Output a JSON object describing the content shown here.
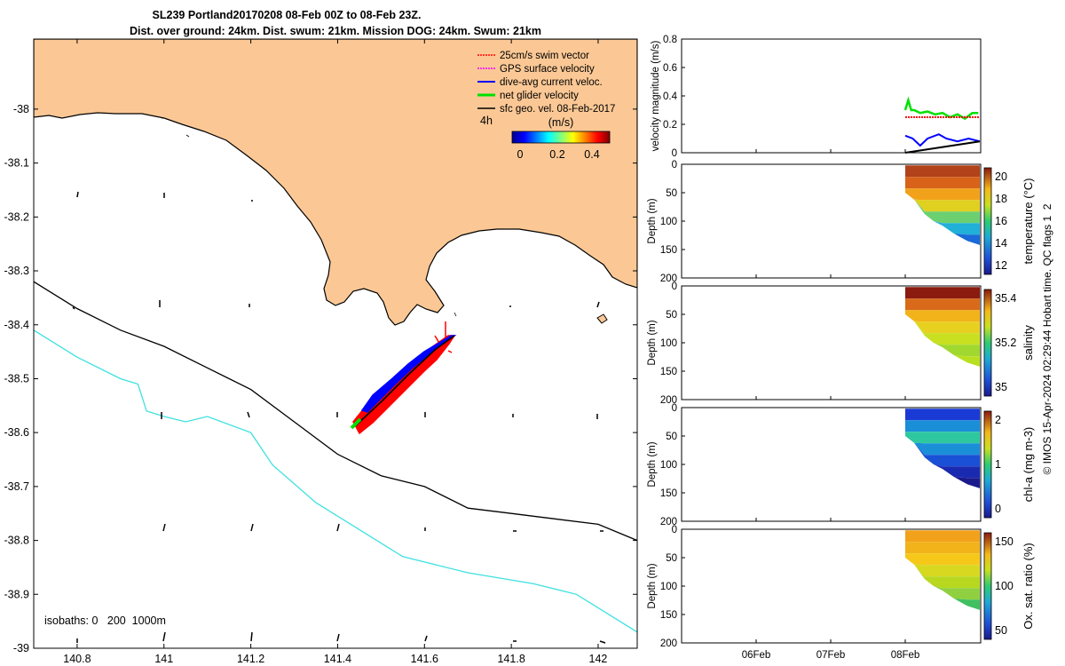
{
  "title_line1": "SL239 Portland20170208 08-Feb 00Z to 08-Feb 23Z.",
  "title_line2": "Dist. over ground: 24km. Dist. swum: 21km. Mission DOG: 24km. Swum: 21km",
  "credit": "© IMOS 15-Apr-2024 02:29:44 Hobart time. QC flags 1  2",
  "chart_data": [
    {
      "type": "map",
      "x_ticks": [
        "140.8",
        "141",
        "141.2",
        "141.4",
        "141.6",
        "141.8",
        "142"
      ],
      "y_ticks": [
        "-38",
        "-38.1",
        "-38.2",
        "-38.3",
        "-38.4",
        "-38.5",
        "-38.6",
        "-38.7",
        "-38.8",
        "-38.9",
        "-39"
      ],
      "xlim": [
        140.7,
        142.09
      ],
      "ylim": [
        -39.0,
        -37.87
      ],
      "legend": {
        "placement": "top-right",
        "entries": [
          {
            "label": "25cm/s swim vector",
            "color": "#ff0000"
          },
          {
            "label": "GPS surface velocity",
            "color": "#ff00ff"
          },
          {
            "label": "dive-avg current veloc.",
            "color": "#0000ff"
          },
          {
            "label": "net glider velocity",
            "color": "#00e000"
          },
          {
            "label": "sfc geo. vel. 08-Feb-2017",
            "color": "#000000"
          }
        ]
      },
      "interval_label": "4h",
      "colorbar": {
        "unit": "(m/s)",
        "ticks": [
          "0",
          "0.2",
          "0.4"
        ]
      },
      "isobath_label": "isobaths: 0   200  1000m",
      "isobath_200": [
        [
          140.7,
          -38.32
        ],
        [
          140.8,
          -38.37
        ],
        [
          140.9,
          -38.41
        ],
        [
          141.0,
          -38.44
        ],
        [
          141.1,
          -38.48
        ],
        [
          141.2,
          -38.52
        ],
        [
          141.3,
          -38.58
        ],
        [
          141.4,
          -38.64
        ],
        [
          141.5,
          -38.68
        ],
        [
          141.6,
          -38.7
        ],
        [
          141.7,
          -38.74
        ],
        [
          141.8,
          -38.75
        ],
        [
          141.9,
          -38.76
        ],
        [
          142.0,
          -38.77
        ],
        [
          142.09,
          -38.8
        ]
      ],
      "isobath_1000": [
        [
          140.7,
          -38.41
        ],
        [
          140.8,
          -38.46
        ],
        [
          140.9,
          -38.5
        ],
        [
          140.94,
          -38.51
        ],
        [
          140.96,
          -38.56
        ],
        [
          141.0,
          -38.57
        ],
        [
          141.05,
          -38.58
        ],
        [
          141.1,
          -38.57
        ],
        [
          141.2,
          -38.6
        ],
        [
          141.25,
          -38.66
        ],
        [
          141.35,
          -38.73
        ],
        [
          141.45,
          -38.78
        ],
        [
          141.55,
          -38.83
        ],
        [
          141.7,
          -38.86
        ],
        [
          141.85,
          -38.88
        ],
        [
          141.95,
          -38.9
        ],
        [
          142.09,
          -38.97
        ]
      ],
      "glider_track_start": [
        141.43,
        -38.61
      ],
      "glider_track_end": [
        141.67,
        -38.45
      ]
    },
    {
      "type": "line",
      "ylabel": "velocity magnitude (m/s)",
      "ylim": [
        0,
        0.8
      ],
      "y_ticks": [
        "0",
        "0.2",
        "0.4",
        "0.6",
        "0.8"
      ],
      "series": [
        {
          "color": "#00e000",
          "values": [
            [
              0.0,
              0.3
            ],
            [
              0.04,
              0.37
            ],
            [
              0.08,
              0.3
            ],
            [
              0.12,
              0.3
            ],
            [
              0.2,
              0.28
            ],
            [
              0.3,
              0.29
            ],
            [
              0.4,
              0.27
            ],
            [
              0.5,
              0.28
            ],
            [
              0.6,
              0.25
            ],
            [
              0.7,
              0.27
            ],
            [
              0.8,
              0.24
            ],
            [
              0.9,
              0.28
            ],
            [
              0.98,
              0.28
            ]
          ]
        },
        {
          "color": "#ff0000",
          "values": [
            [
              0.0,
              0.25
            ],
            [
              1.0,
              0.25
            ]
          ]
        },
        {
          "color": "#0000ff",
          "values": [
            [
              0.0,
              0.12
            ],
            [
              0.1,
              0.1
            ],
            [
              0.2,
              0.05
            ],
            [
              0.3,
              0.1
            ],
            [
              0.45,
              0.13
            ],
            [
              0.55,
              0.1
            ],
            [
              0.7,
              0.08
            ],
            [
              0.85,
              0.1
            ],
            [
              1.0,
              0.08
            ]
          ]
        },
        {
          "color": "#000000",
          "values": [
            [
              0.0,
              0.0
            ],
            [
              1.0,
              0.08
            ]
          ]
        }
      ]
    },
    {
      "type": "heatmap",
      "ylabel": "Depth (m)",
      "y_ticks": [
        "0",
        "50",
        "100",
        "150",
        "200"
      ],
      "colorbar_label": "temperature (°C)",
      "colorbar_ticks": [
        "12",
        "14",
        "16",
        "18",
        "20"
      ]
    },
    {
      "type": "heatmap",
      "ylabel": "Depth (m)",
      "y_ticks": [
        "0",
        "50",
        "100",
        "150",
        "200"
      ],
      "colorbar_label": "salinity",
      "colorbar_ticks": [
        "35",
        "35.2",
        "35.4"
      ]
    },
    {
      "type": "heatmap",
      "ylabel": "Depth (m)",
      "y_ticks": [
        "0",
        "50",
        "100",
        "150",
        "200"
      ],
      "colorbar_label": "chl-a (mg m-3)",
      "colorbar_ticks": [
        "0",
        "1",
        "2"
      ]
    },
    {
      "type": "heatmap",
      "ylabel": "Depth (m)",
      "y_ticks": [
        "0",
        "50",
        "100",
        "150",
        "200"
      ],
      "colorbar_label": "Ox. sat. ratio (%)",
      "colorbar_ticks": [
        "50",
        "100",
        "150"
      ]
    }
  ],
  "time_axis_ticks": [
    "06Feb",
    "07Feb",
    "08Feb"
  ]
}
